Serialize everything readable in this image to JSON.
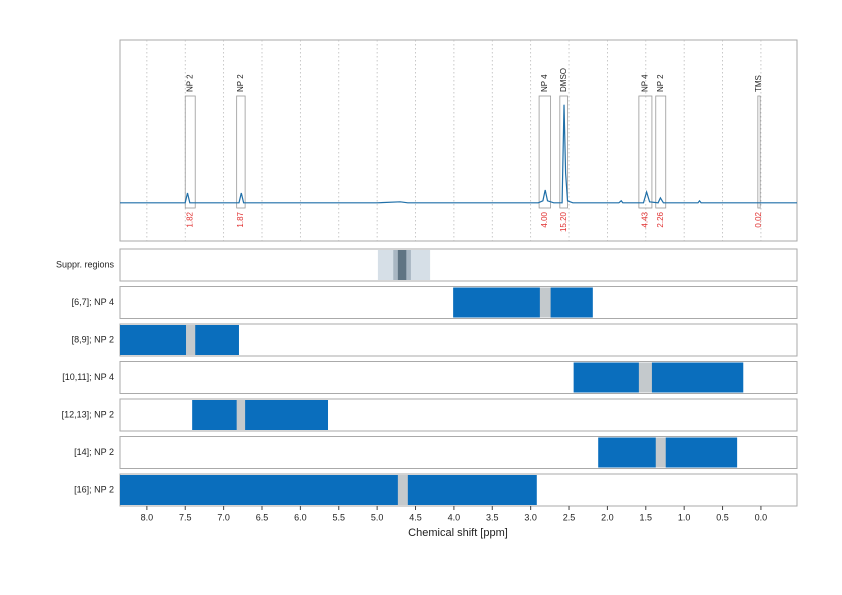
{
  "chart_data": [
    {
      "type": "line",
      "xlim": [
        8.35,
        -0.47
      ],
      "xticks": [
        8.0,
        7.5,
        7.0,
        6.5,
        6.0,
        5.5,
        5.0,
        4.5,
        4.0,
        3.5,
        3.0,
        2.5,
        2.0,
        1.5,
        1.0,
        0.5,
        0.0
      ],
      "grid": true,
      "ylim": [
        -0.39,
        1.66
      ],
      "x": [
        8.35,
        7.5,
        7.47,
        7.44,
        6.8,
        6.77,
        6.74,
        5.0,
        4.7,
        4.6,
        2.9,
        2.84,
        2.81,
        2.78,
        2.7,
        2.59,
        2.565,
        2.545,
        2.52,
        2.45,
        1.85,
        1.82,
        1.8,
        1.53,
        1.49,
        1.45,
        1.34,
        1.31,
        1.27,
        0.82,
        0.8,
        0.78,
        -0.47
      ],
      "series": [
        {
          "color": "#1f6fa8",
          "values": [
            0,
            0,
            0.1,
            0,
            0,
            0.1,
            0,
            0,
            0.01,
            0,
            0,
            0.02,
            0.13,
            0.02,
            0,
            0,
            1.0,
            0.3,
            0.02,
            0,
            0,
            0.02,
            0,
            0,
            0.11,
            0.01,
            0,
            0.05,
            0,
            0,
            0.02,
            0,
            0
          ]
        }
      ],
      "annotations": {
        "labels": [
          "NP 2",
          "NP 2",
          "NP 4",
          "DMSO",
          "NP 4",
          "NP 2",
          "TMS"
        ],
        "ranges": [
          [
            7.5,
            7.37
          ],
          [
            6.83,
            6.72
          ],
          [
            2.89,
            2.74
          ],
          [
            2.62,
            2.52
          ],
          [
            1.59,
            1.42
          ],
          [
            1.37,
            1.24
          ],
          [
            0.04,
            0.01
          ]
        ],
        "values": [
          1.82,
          1.87,
          4,
          15.2,
          4.43,
          2.26,
          0.02
        ],
        "value_labels": [
          "1.82",
          "1.87",
          "4.00",
          "15.20",
          "4.43",
          "2.26",
          "0.02"
        ],
        "value_color": "#e03030"
      }
    },
    {
      "type": "range",
      "xlim": [
        8.35,
        -0.47
      ],
      "xticks": [
        {
          "value": 8.0,
          "label": "8.0"
        },
        {
          "value": 7.5,
          "label": "7.5"
        },
        {
          "value": 7.0,
          "label": "7.0"
        },
        {
          "value": 6.5,
          "label": "6.5"
        },
        {
          "value": 6.0,
          "label": "6.0"
        },
        {
          "value": 5.5,
          "label": "5.5"
        },
        {
          "value": 5.0,
          "label": "5.0"
        },
        {
          "value": 4.5,
          "label": "4.5"
        },
        {
          "value": 4.0,
          "label": "4.0"
        },
        {
          "value": 3.5,
          "label": "3.5"
        },
        {
          "value": 3.0,
          "label": "3.0"
        },
        {
          "value": 2.5,
          "label": "2.5"
        },
        {
          "value": 2.0,
          "label": "2.0"
        },
        {
          "value": 1.5,
          "label": "1.5"
        },
        {
          "value": 1.0,
          "label": "1.0"
        },
        {
          "value": 0.5,
          "label": "0.5"
        },
        {
          "value": 0.0,
          "label": "0.0"
        }
      ],
      "xlabel": "Chemical shift [ppm]",
      "categories": [
        "Suppr. regions",
        "[6,7]; NP 4",
        "[8,9]; NP 2",
        "[10,11]; NP 4",
        "[12,13]; NP 2",
        "[14]; NP 2",
        "[16]; NP 2"
      ],
      "rows": [
        [
          {
            "range": [
              4.99,
              4.31
            ],
            "color": "#d6dfe7"
          },
          {
            "range": [
              4.79,
              4.56
            ],
            "color": "#a9b7c3"
          },
          {
            "range": [
              4.73,
              4.62
            ],
            "color": "#5f7483"
          }
        ],
        [
          {
            "range": [
              4.01,
              2.19
            ],
            "color": "#0a6ebd"
          },
          {
            "range": [
              2.88,
              2.74
            ],
            "color": "#c4c9cc"
          }
        ],
        [
          {
            "range": [
              8.35,
              6.8
            ],
            "color": "#0a6ebd"
          },
          {
            "range": [
              7.49,
              7.37
            ],
            "color": "#c4c9cc"
          }
        ],
        [
          {
            "range": [
              2.44,
              0.23
            ],
            "color": "#0a6ebd"
          },
          {
            "range": [
              1.59,
              1.42
            ],
            "color": "#c4c9cc"
          }
        ],
        [
          {
            "range": [
              7.41,
              5.64
            ],
            "color": "#0a6ebd"
          },
          {
            "range": [
              6.83,
              6.72
            ],
            "color": "#c4c9cc"
          }
        ],
        [
          {
            "range": [
              2.12,
              0.31
            ],
            "color": "#0a6ebd"
          },
          {
            "range": [
              1.37,
              1.24
            ],
            "color": "#c4c9cc"
          }
        ],
        [
          {
            "range": [
              8.35,
              2.92
            ],
            "color": "#0a6ebd"
          },
          {
            "range": [
              4.73,
              4.6
            ],
            "color": "#c4c9cc"
          }
        ]
      ]
    }
  ]
}
